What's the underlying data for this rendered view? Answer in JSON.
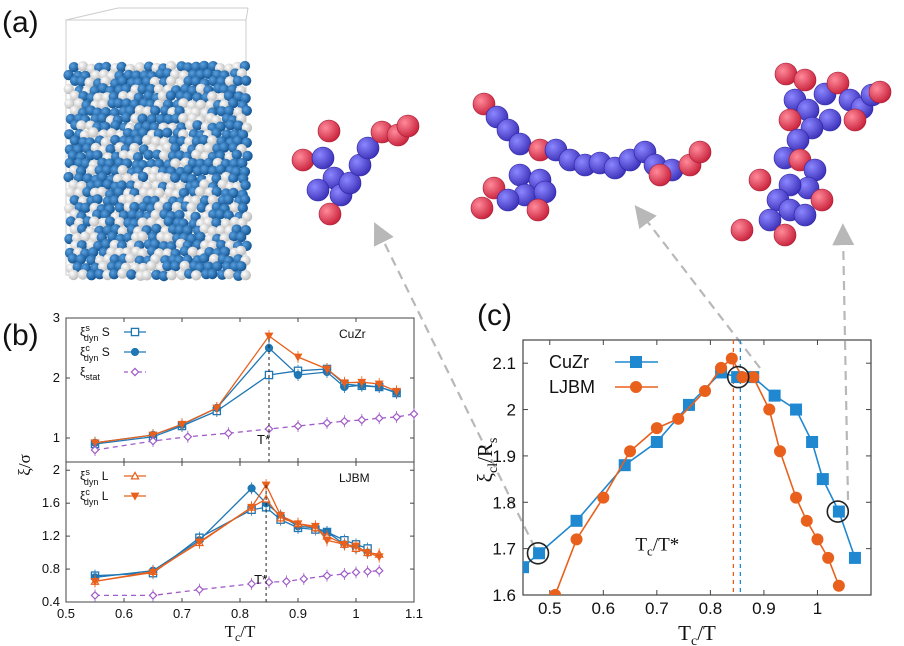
{
  "panels": {
    "a": "(a)",
    "b": "(b)",
    "c": "(c)"
  },
  "colors": {
    "blue": "#1f77b4",
    "orange": "#e8601c",
    "purple": "#a05cc8",
    "snap_blue": "#1565a8",
    "atom_red": "#f0405a",
    "atom_violet": "#5a50e0",
    "arrow_gray": "#b8b8b8"
  },
  "snapshot": {
    "description_icon": "simulation-box-icon"
  },
  "clusters": [
    {
      "name": "cluster-small",
      "icon": "atom-cluster-icon"
    },
    {
      "name": "cluster-medium",
      "icon": "atom-cluster-icon"
    },
    {
      "name": "cluster-large",
      "icon": "atom-cluster-icon"
    }
  ],
  "chart_data": [
    {
      "id": "b-top",
      "type": "line",
      "system": "CuZr",
      "xlabel": "T_c/T",
      "ylabel": "ξ/σ",
      "xlim": [
        0.5,
        1.1
      ],
      "ylim": [
        0.6,
        3
      ],
      "xticks": [
        "0.5",
        "0.6",
        "0.7",
        "0.8",
        "0.9",
        "1",
        "1.1"
      ],
      "yticks": [
        "1",
        "2",
        "3"
      ],
      "annotation": "T*",
      "annotation_x": 0.85,
      "legend": [
        {
          "label": "ξ",
          "sup": "s",
          "sub": "dyn",
          "suffix": " S"
        },
        {
          "label": "ξ",
          "sup": "c",
          "sub": "dyn",
          "suffix": " S"
        },
        {
          "label": "ξ",
          "sub": "stat",
          "suffix": ""
        }
      ],
      "series": [
        {
          "name": "xi_dyn^s S",
          "color": "#1f77b4",
          "marker": "open-square",
          "dash": false,
          "x": [
            0.55,
            0.65,
            0.7,
            0.76,
            0.85,
            0.9,
            0.95,
            0.98,
            1.01,
            1.04,
            1.07
          ],
          "y": [
            0.9,
            1.02,
            1.2,
            1.45,
            2.05,
            2.12,
            2.15,
            1.9,
            1.87,
            1.85,
            1.75
          ]
        },
        {
          "name": "xi_dyn^c S",
          "color": "#1f77b4",
          "marker": "filled-circle",
          "dash": false,
          "x": [
            0.55,
            0.65,
            0.7,
            0.76,
            0.85,
            0.9,
            0.95,
            0.98,
            1.01,
            1.04,
            1.07
          ],
          "y": [
            0.92,
            1.05,
            1.22,
            1.5,
            2.5,
            2.05,
            2.1,
            1.85,
            1.88,
            1.85,
            1.76
          ]
        },
        {
          "name": "xi_dyn^c S (orange)",
          "color": "#e8601c",
          "marker": "filled-triangle-down",
          "dash": false,
          "x": [
            0.55,
            0.65,
            0.7,
            0.76,
            0.85,
            0.9,
            0.95,
            0.98,
            1.01,
            1.04,
            1.07
          ],
          "y": [
            0.92,
            1.05,
            1.23,
            1.5,
            2.7,
            2.35,
            2.15,
            1.92,
            1.93,
            1.9,
            1.78
          ]
        },
        {
          "name": "xi_stat",
          "color": "#a05cc8",
          "marker": "open-diamond",
          "dash": true,
          "x": [
            0.55,
            0.65,
            0.71,
            0.78,
            0.85,
            0.9,
            0.95,
            0.98,
            1.01,
            1.04,
            1.07,
            1.1
          ],
          "y": [
            0.8,
            0.95,
            1.02,
            1.08,
            1.15,
            1.2,
            1.25,
            1.28,
            1.3,
            1.33,
            1.35,
            1.4
          ]
        }
      ]
    },
    {
      "id": "b-bottom",
      "type": "line",
      "system": "LJBM",
      "xlabel": "T_c/T",
      "ylabel": "ξ/σ",
      "xlim": [
        0.5,
        1.1
      ],
      "ylim": [
        0.4,
        2.1
      ],
      "xticks": [
        "0.5",
        "0.6",
        "0.7",
        "0.8",
        "0.9",
        "1",
        "1.1"
      ],
      "yticks": [
        "0.4",
        "0.8",
        "1.2",
        "1.6",
        "2"
      ],
      "annotation": "T*",
      "annotation_x": 0.845,
      "legend": [
        {
          "label": "ξ",
          "sup": "s",
          "sub": "dyn",
          "suffix": " L"
        },
        {
          "label": "ξ",
          "sup": "c",
          "sub": "dyn",
          "suffix": " L"
        }
      ],
      "series": [
        {
          "name": "xi_dyn^s L (blue)",
          "color": "#1f77b4",
          "marker": "open-square",
          "dash": false,
          "x": [
            0.55,
            0.65,
            0.73,
            0.82,
            0.845,
            0.87,
            0.9,
            0.93,
            0.95,
            0.98,
            1.0,
            1.02
          ],
          "y": [
            0.72,
            0.75,
            1.18,
            1.52,
            1.55,
            1.4,
            1.3,
            1.28,
            1.25,
            1.15,
            1.1,
            1.05
          ]
        },
        {
          "name": "xi_dyn^c L (blue)",
          "color": "#1f77b4",
          "marker": "filled-circle",
          "dash": false,
          "x": [
            0.55,
            0.65,
            0.73,
            0.82,
            0.845,
            0.87,
            0.9,
            0.93,
            0.95,
            0.98,
            1.0,
            1.02
          ],
          "y": [
            0.7,
            0.78,
            1.15,
            1.78,
            1.6,
            1.45,
            1.32,
            1.3,
            1.25,
            1.1,
            1.05,
            1.0
          ]
        },
        {
          "name": "xi_dyn^s L",
          "color": "#e8601c",
          "marker": "open-triangle-up",
          "dash": false,
          "x": [
            0.55,
            0.65,
            0.73,
            0.82,
            0.845,
            0.87,
            0.9,
            0.93,
            0.95,
            0.98,
            1.0,
            1.02,
            1.04
          ],
          "y": [
            0.65,
            0.77,
            1.12,
            1.55,
            1.65,
            1.42,
            1.35,
            1.3,
            1.2,
            1.1,
            1.05,
            1.0,
            0.98
          ]
        },
        {
          "name": "xi_dyn^c L",
          "color": "#e8601c",
          "marker": "filled-triangle-down",
          "dash": false,
          "x": [
            0.55,
            0.65,
            0.73,
            0.82,
            0.845,
            0.87,
            0.9,
            0.93,
            0.95,
            0.98,
            1.0,
            1.02,
            1.04
          ],
          "y": [
            0.65,
            0.76,
            1.13,
            1.55,
            1.82,
            1.45,
            1.35,
            1.32,
            1.15,
            1.1,
            1.08,
            1.0,
            0.95
          ]
        },
        {
          "name": "xi_stat (bottom)",
          "color": "#a05cc8",
          "marker": "open-diamond",
          "dash": true,
          "x": [
            0.55,
            0.65,
            0.73,
            0.82,
            0.85,
            0.88,
            0.91,
            0.95,
            0.98,
            1.0,
            1.02,
            1.04
          ],
          "y": [
            0.48,
            0.48,
            0.55,
            0.62,
            0.64,
            0.65,
            0.68,
            0.72,
            0.74,
            0.76,
            0.77,
            0.78
          ]
        }
      ]
    },
    {
      "id": "c",
      "type": "line",
      "xlabel": "T_c/T",
      "ylabel": "ξ_cl/R_s",
      "xlim": [
        0.45,
        1.1
      ],
      "ylim": [
        1.6,
        2.15
      ],
      "xticks": [
        "0.5",
        "0.6",
        "0.7",
        "0.8",
        "0.9",
        "1"
      ],
      "yticks": [
        "1.6",
        "1.7",
        "1.8",
        "1.9",
        "2",
        "2.1"
      ],
      "annotation": "T_c/T*",
      "vlines": [
        0.843,
        0.856
      ],
      "legend": [
        "CuZr",
        "LJBM"
      ],
      "series": [
        {
          "name": "CuZr",
          "color": "#1f88d0",
          "marker": "filled-square",
          "x": [
            0.45,
            0.48,
            0.55,
            0.64,
            0.7,
            0.76,
            0.82,
            0.85,
            0.88,
            0.92,
            0.96,
            0.99,
            1.01,
            1.04,
            1.07
          ],
          "y": [
            1.66,
            1.69,
            1.76,
            1.88,
            1.93,
            2.01,
            2.08,
            2.07,
            2.07,
            2.03,
            2.0,
            1.93,
            1.85,
            1.78,
            1.68
          ]
        },
        {
          "name": "LJBM",
          "color": "#e8601c",
          "marker": "filled-circle",
          "x": [
            0.51,
            0.55,
            0.6,
            0.65,
            0.7,
            0.74,
            0.79,
            0.82,
            0.84,
            0.86,
            0.88,
            0.91,
            0.93,
            0.96,
            0.98,
            1.0,
            1.02,
            1.04
          ],
          "y": [
            1.6,
            1.72,
            1.81,
            1.91,
            1.96,
            1.98,
            2.04,
            2.09,
            2.11,
            2.07,
            2.07,
            2.0,
            1.91,
            1.81,
            1.76,
            1.72,
            1.68,
            1.62
          ]
        }
      ],
      "highlighted": [
        {
          "x": 0.478,
          "y": 1.69
        },
        {
          "x": 0.852,
          "y": 2.07
        },
        {
          "x": 1.038,
          "y": 1.78
        }
      ]
    }
  ]
}
